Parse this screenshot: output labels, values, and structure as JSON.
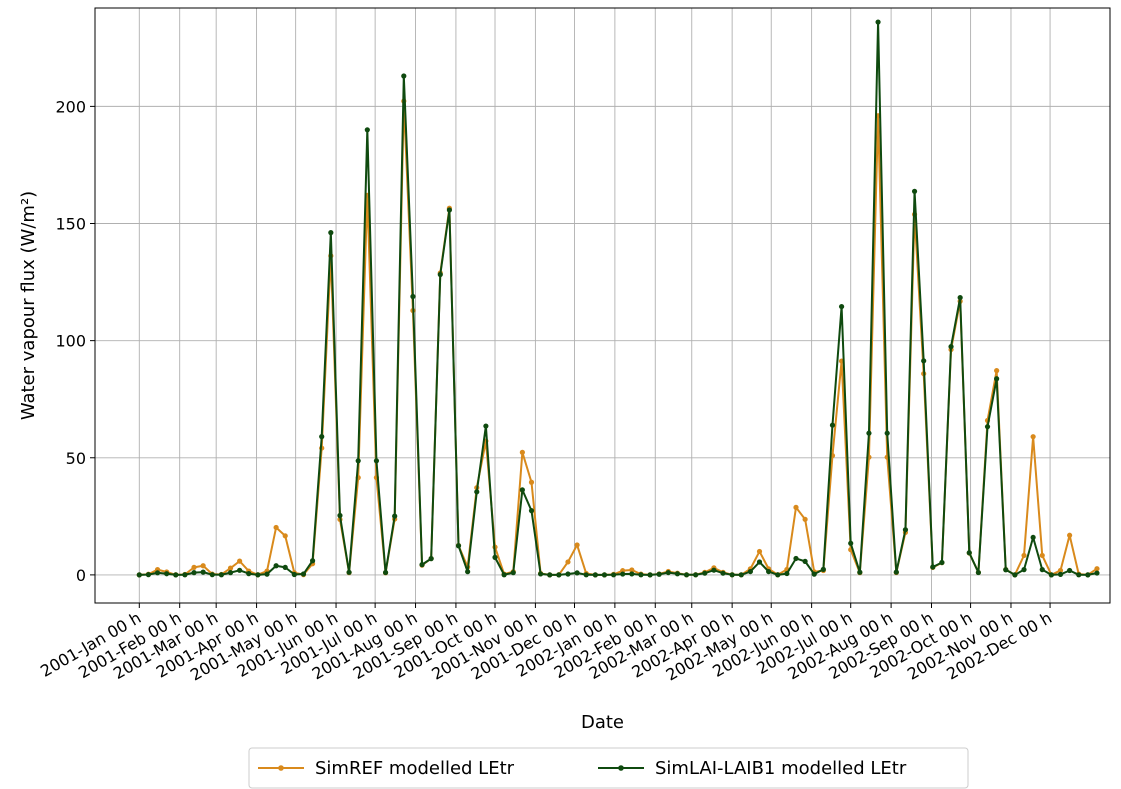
{
  "chart_data": {
    "type": "line",
    "title": "",
    "xlabel": "Date",
    "ylabel": "Water vapour flux (W/m²)",
    "ylim": [
      -12,
      242
    ],
    "yticks": [
      0,
      50,
      100,
      150,
      200
    ],
    "grid": true,
    "legend_placement": "bottom-center, outside plot",
    "xlim_days": [
      -34,
      745
    ],
    "month_tick_days": [
      0,
      31,
      59,
      90,
      120,
      151,
      181,
      212,
      243,
      273,
      304,
      334,
      365,
      396,
      424,
      455,
      485,
      516,
      546,
      577,
      608,
      638,
      669,
      699
    ],
    "categories": [
      "2001-Jan 00 h",
      "2001-Feb 00 h",
      "2001-Mar 00 h",
      "2001-Apr 00 h",
      "2001-May 00 h",
      "2001-Jun 00 h",
      "2001-Jul 00 h",
      "2001-Aug 00 h",
      "2001-Sep 00 h",
      "2001-Oct 00 h",
      "2001-Nov 00 h",
      "2001-Dec 00 h",
      "2002-Jan 00 h",
      "2002-Feb 00 h",
      "2002-Mar 00 h",
      "2002-Apr 00 h",
      "2002-May 00 h",
      "2002-Jun 00 h",
      "2002-Jul 00 h",
      "2002-Aug 00 h",
      "2002-Sep 00 h",
      "2002-Oct 00 h",
      "2002-Nov 00 h",
      "2002-Dec 00 h"
    ],
    "peaks_description": "x values are days since 2001-01-01",
    "series": [
      {
        "name": "SimREF modelled LEtr",
        "color": "#d98a1c",
        "peaks": [
          [
            16,
            2.5,
            6
          ],
          [
            46,
            5,
            6
          ],
          [
            76,
            6,
            7
          ],
          [
            108,
            26,
            6
          ],
          [
            136,
            5,
            5
          ],
          [
            146,
            140,
            6
          ],
          [
            175,
            162,
            6
          ],
          [
            205,
            226,
            6
          ],
          [
            235,
            201,
            6
          ],
          [
            264,
            62,
            7
          ],
          [
            297,
            75,
            5
          ],
          [
            334,
            15,
            5
          ],
          [
            375,
            2.5,
            7
          ],
          [
            407,
            1.5,
            7
          ],
          [
            441,
            3,
            7
          ],
          [
            476,
            10,
            6
          ],
          [
            507,
            37,
            6
          ],
          [
            537,
            102,
            6
          ],
          [
            567,
            196,
            6
          ],
          [
            597,
            172,
            6
          ],
          [
            627,
            150,
            6
          ],
          [
            655,
            125,
            5
          ],
          [
            686,
            59,
            5
          ],
          [
            713,
            18,
            4
          ],
          [
            739,
            5,
            5
          ]
        ]
      },
      {
        "name": "SimLAI-LAIB1 modelled LEtr",
        "color": "#0f4a0f",
        "peaks": [
          [
            16,
            1,
            6
          ],
          [
            46,
            1.5,
            6
          ],
          [
            76,
            2,
            7
          ],
          [
            108,
            5,
            6
          ],
          [
            136,
            6,
            6
          ],
          [
            146,
            150,
            6
          ],
          [
            175,
            190,
            6
          ],
          [
            205,
            238,
            6
          ],
          [
            235,
            200,
            6
          ],
          [
            264,
            71,
            6
          ],
          [
            297,
            52,
            5
          ],
          [
            334,
            1,
            5
          ],
          [
            375,
            0.5,
            7
          ],
          [
            407,
            1,
            7
          ],
          [
            441,
            2,
            7
          ],
          [
            476,
            5.5,
            6
          ],
          [
            507,
            9,
            6
          ],
          [
            537,
            128,
            6
          ],
          [
            567,
            236,
            6
          ],
          [
            597,
            183,
            6
          ],
          [
            627,
            152,
            6
          ],
          [
            655,
            120,
            5
          ],
          [
            686,
            16,
            5
          ],
          [
            713,
            2,
            4
          ],
          [
            739,
            1.5,
            5
          ]
        ]
      }
    ]
  }
}
